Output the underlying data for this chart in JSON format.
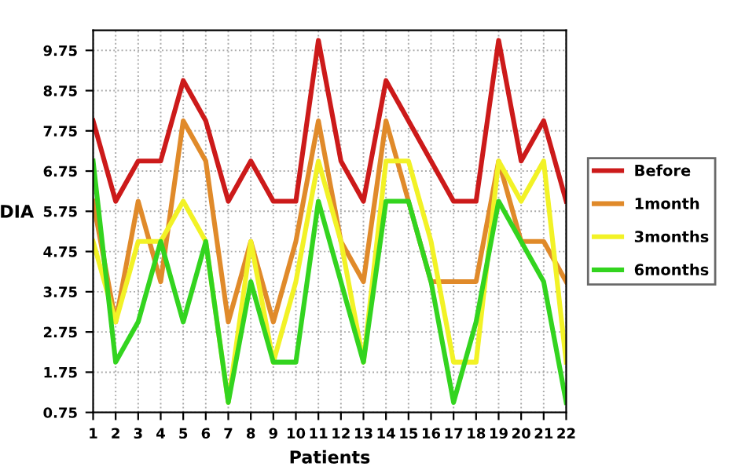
{
  "chart_data": {
    "type": "line",
    "xlabel": "Patients",
    "ylabel": "DIA",
    "x": [
      1,
      2,
      3,
      4,
      5,
      6,
      7,
      8,
      9,
      10,
      11,
      12,
      13,
      14,
      15,
      16,
      17,
      18,
      19,
      20,
      21,
      22
    ],
    "series": [
      {
        "name": "Before",
        "color": "#cc1a1a",
        "values": [
          8,
          6,
          7,
          7,
          9,
          8,
          6,
          7,
          6,
          6,
          10,
          7,
          6,
          9,
          8,
          7,
          6,
          6,
          10,
          7,
          8,
          6
        ]
      },
      {
        "name": "1month",
        "color": "#e08a2a",
        "values": [
          6,
          3,
          6,
          4,
          8,
          7,
          3,
          5,
          3,
          5,
          8,
          5,
          4,
          8,
          6,
          4,
          4,
          4,
          7,
          5,
          5,
          4
        ]
      },
      {
        "name": "3months",
        "color": "#f2f226",
        "values": [
          5,
          3,
          5,
          5,
          6,
          5,
          1,
          5,
          2,
          4,
          7,
          5,
          2,
          7,
          7,
          5,
          2,
          2,
          7,
          6,
          7,
          2
        ]
      },
      {
        "name": "6months",
        "color": "#33d41f",
        "values": [
          7,
          2,
          3,
          5,
          3,
          5,
          1,
          4,
          2,
          2,
          6,
          4,
          2,
          6,
          6,
          4,
          1,
          3,
          6,
          5,
          4,
          1
        ]
      }
    ],
    "xlim": [
      1,
      22
    ],
    "ylim": [
      0.75,
      10.25
    ],
    "xticks": [
      1,
      2,
      3,
      4,
      5,
      6,
      7,
      8,
      9,
      10,
      11,
      12,
      13,
      14,
      15,
      16,
      17,
      18,
      19,
      20,
      21,
      22
    ],
    "yticks": [
      0.75,
      1.75,
      2.75,
      3.75,
      4.75,
      5.75,
      6.75,
      7.75,
      8.75,
      9.75
    ],
    "grid": true,
    "legend": "right",
    "marker": "none",
    "line_style": "solid"
  }
}
